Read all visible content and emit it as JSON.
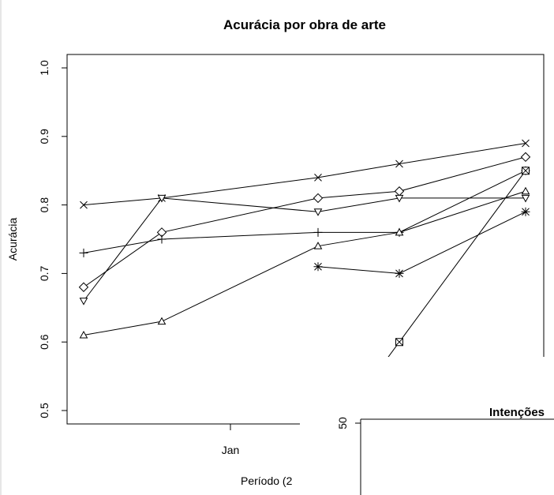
{
  "chart_data": [
    {
      "type": "line",
      "title": "Acurácia por obra de arte",
      "xlabel": "Período (2",
      "ylabel": "Acurácia",
      "ylim": [
        0.5,
        1.0
      ],
      "yticks": [
        "0.5",
        "0.6",
        "0.7",
        "0.8",
        "0.9",
        "1.0"
      ],
      "xticks": [
        "Jan"
      ],
      "x": [
        1,
        2,
        3,
        4,
        5,
        6
      ],
      "grid": false,
      "legend": "none",
      "series": [
        {
          "marker": "x",
          "values": [
            0.8,
            0.81,
            null,
            0.84,
            0.86,
            0.89
          ]
        },
        {
          "marker": "diamond",
          "values": [
            0.68,
            0.76,
            null,
            0.81,
            0.82,
            0.87
          ]
        },
        {
          "marker": "triangle-down",
          "values": [
            0.66,
            0.81,
            null,
            0.79,
            0.81,
            0.81
          ]
        },
        {
          "marker": "plus",
          "values": [
            0.73,
            0.75,
            null,
            0.76,
            0.76,
            0.85
          ]
        },
        {
          "marker": "triangle-up",
          "values": [
            0.61,
            0.63,
            null,
            0.74,
            0.76,
            0.82
          ]
        },
        {
          "marker": "asterisk",
          "values": [
            null,
            null,
            null,
            0.71,
            0.7,
            0.79
          ]
        },
        {
          "marker": "square-x",
          "values": [
            null,
            null,
            null,
            null,
            0.6,
            0.85
          ]
        }
      ]
    },
    {
      "type": "bar",
      "title": "Intenções",
      "yticks": [
        "50"
      ],
      "partial": true
    }
  ]
}
